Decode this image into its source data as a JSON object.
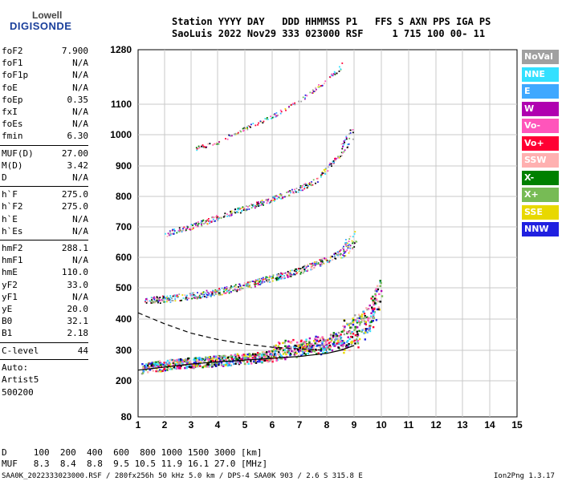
{
  "logo": {
    "line1": "Lowell",
    "line2": "DIGISONDE"
  },
  "header": {
    "line1": "Station YYYY DAY   DDD HHMMSS P1   FFS S AXN PPS IGA PS",
    "line2": "SaoLuis 2022 Nov29 333 023000 RSF     1 715 100 00- 11"
  },
  "params1": [
    {
      "k": "foF2",
      "v": "7.900"
    },
    {
      "k": "foF1",
      "v": "N/A"
    },
    {
      "k": "foF1p",
      "v": "N/A"
    },
    {
      "k": "foE",
      "v": "N/A"
    },
    {
      "k": "foEp",
      "v": "0.35"
    },
    {
      "k": "fxI",
      "v": "N/A"
    },
    {
      "k": "foEs",
      "v": "N/A"
    },
    {
      "k": "fmin",
      "v": "6.30"
    }
  ],
  "params2": [
    {
      "k": "MUF(D)",
      "v": "27.00"
    },
    {
      "k": "M(D)",
      "v": "3.42"
    },
    {
      "k": "D",
      "v": "N/A"
    }
  ],
  "params3": [
    {
      "k": "h`F",
      "v": "275.0"
    },
    {
      "k": "h`F2",
      "v": "275.0"
    },
    {
      "k": "h`E",
      "v": "N/A"
    },
    {
      "k": "h`Es",
      "v": "N/A"
    }
  ],
  "params4": [
    {
      "k": "hmF2",
      "v": "288.1"
    },
    {
      "k": "hmF1",
      "v": "N/A"
    },
    {
      "k": "hmE",
      "v": "110.0"
    },
    {
      "k": "yF2",
      "v": "33.0"
    },
    {
      "k": "yF1",
      "v": "N/A"
    },
    {
      "k": "yE",
      "v": "20.0"
    },
    {
      "k": "B0",
      "v": "32.1"
    },
    {
      "k": "B1",
      "v": "2.18"
    }
  ],
  "clevel": {
    "k": "C-level",
    "v": "44"
  },
  "auto": {
    "l1": "Auto:",
    "l2": "Artist5",
    "l3": "500200"
  },
  "legend": [
    {
      "label": "NoVal",
      "color": "#a0a0a0"
    },
    {
      "label": "NNE",
      "color": "#33e0ff"
    },
    {
      "label": "E",
      "color": "#3fa8ff"
    },
    {
      "label": "W",
      "color": "#b000b0"
    },
    {
      "label": "Vo-",
      "color": "#ff55bb"
    },
    {
      "label": "Vo+",
      "color": "#ff0033"
    },
    {
      "label": "SSW",
      "color": "#ffb0b0"
    },
    {
      "label": "X-",
      "color": "#008000"
    },
    {
      "label": "X+",
      "color": "#77bb55"
    },
    {
      "label": "SSE",
      "color": "#e8d800"
    },
    {
      "label": "NNW",
      "color": "#2020e0"
    }
  ],
  "bottom": {
    "row1": "D     100  200  400  600  800 1000 1500 3000 [km]",
    "row2": "MUF   8.3  8.4  8.8  9.5 10.5 11.9 16.1 27.0 [MHz]"
  },
  "footer": {
    "left": "SAA0K_2022333023000.RSF / 280fx256h 50 kHz 5.0 km / DPS-4 SAA0K 903 / 2.6 S 315.8 E",
    "right": "Ion2Png 1.3.17"
  },
  "chart_data": {
    "type": "scatter",
    "title": "",
    "xlabel": "",
    "ylabel": "",
    "xlim": [
      1,
      15
    ],
    "ylim": [
      80,
      1280
    ],
    "x_scale": "log-like",
    "x_ticks": [
      1,
      2,
      3,
      4,
      5,
      6,
      7,
      8,
      9,
      10,
      11,
      12,
      13,
      14,
      15
    ],
    "y_ticks": [
      80,
      200,
      300,
      400,
      500,
      600,
      700,
      800,
      900,
      1000,
      1100,
      1280
    ],
    "grid": true,
    "series": [
      {
        "name": "",
        "points": [
          [
            1.1,
            238
          ],
          [
            1.5,
            242
          ],
          [
            2,
            248
          ],
          [
            3,
            255
          ],
          [
            4,
            262
          ],
          [
            5,
            270
          ],
          [
            6,
            278
          ],
          [
            7,
            290
          ],
          [
            8,
            302
          ],
          [
            8.5,
            315
          ],
          [
            9,
            335
          ],
          [
            9.3,
            355
          ],
          [
            9.6,
            390
          ],
          [
            9.8,
            430
          ],
          [
            10,
            470
          ]
        ]
      },
      {
        "name": "",
        "points": [
          [
            1.2,
            455
          ],
          [
            2,
            462
          ],
          [
            3,
            472
          ],
          [
            4,
            485
          ],
          [
            5,
            505
          ],
          [
            6,
            530
          ],
          [
            7,
            555
          ],
          [
            8,
            590
          ],
          [
            8.6,
            620
          ],
          [
            9,
            650
          ],
          [
            9.1,
            680
          ]
        ]
      },
      {
        "name": "",
        "points": [
          [
            2,
            675
          ],
          [
            3,
            700
          ],
          [
            4,
            730
          ],
          [
            5,
            760
          ],
          [
            6,
            790
          ],
          [
            7,
            825
          ],
          [
            7.6,
            850
          ],
          [
            8,
            890
          ],
          [
            8.5,
            940
          ],
          [
            9,
            1010
          ]
        ]
      },
      {
        "name": "",
        "points": [
          [
            3,
            950
          ],
          [
            4,
            975
          ],
          [
            5,
            1020
          ],
          [
            6,
            1060
          ],
          [
            7,
            1110
          ],
          [
            8,
            1180
          ],
          [
            8.6,
            1230
          ]
        ]
      }
    ],
    "profile_lines": [
      {
        "style": "solid",
        "points": [
          [
            1,
            235
          ],
          [
            2,
            245
          ],
          [
            3,
            255
          ],
          [
            4,
            262
          ],
          [
            5,
            268
          ],
          [
            6,
            274
          ],
          [
            7,
            280
          ],
          [
            8,
            290
          ],
          [
            8.5,
            300
          ],
          [
            9,
            315
          ]
        ]
      },
      {
        "style": "dashed",
        "points": [
          [
            1,
            420
          ],
          [
            2,
            385
          ],
          [
            3,
            355
          ],
          [
            4,
            335
          ],
          [
            5,
            320
          ],
          [
            6,
            310
          ],
          [
            7,
            305
          ],
          [
            8,
            300
          ]
        ]
      }
    ]
  }
}
